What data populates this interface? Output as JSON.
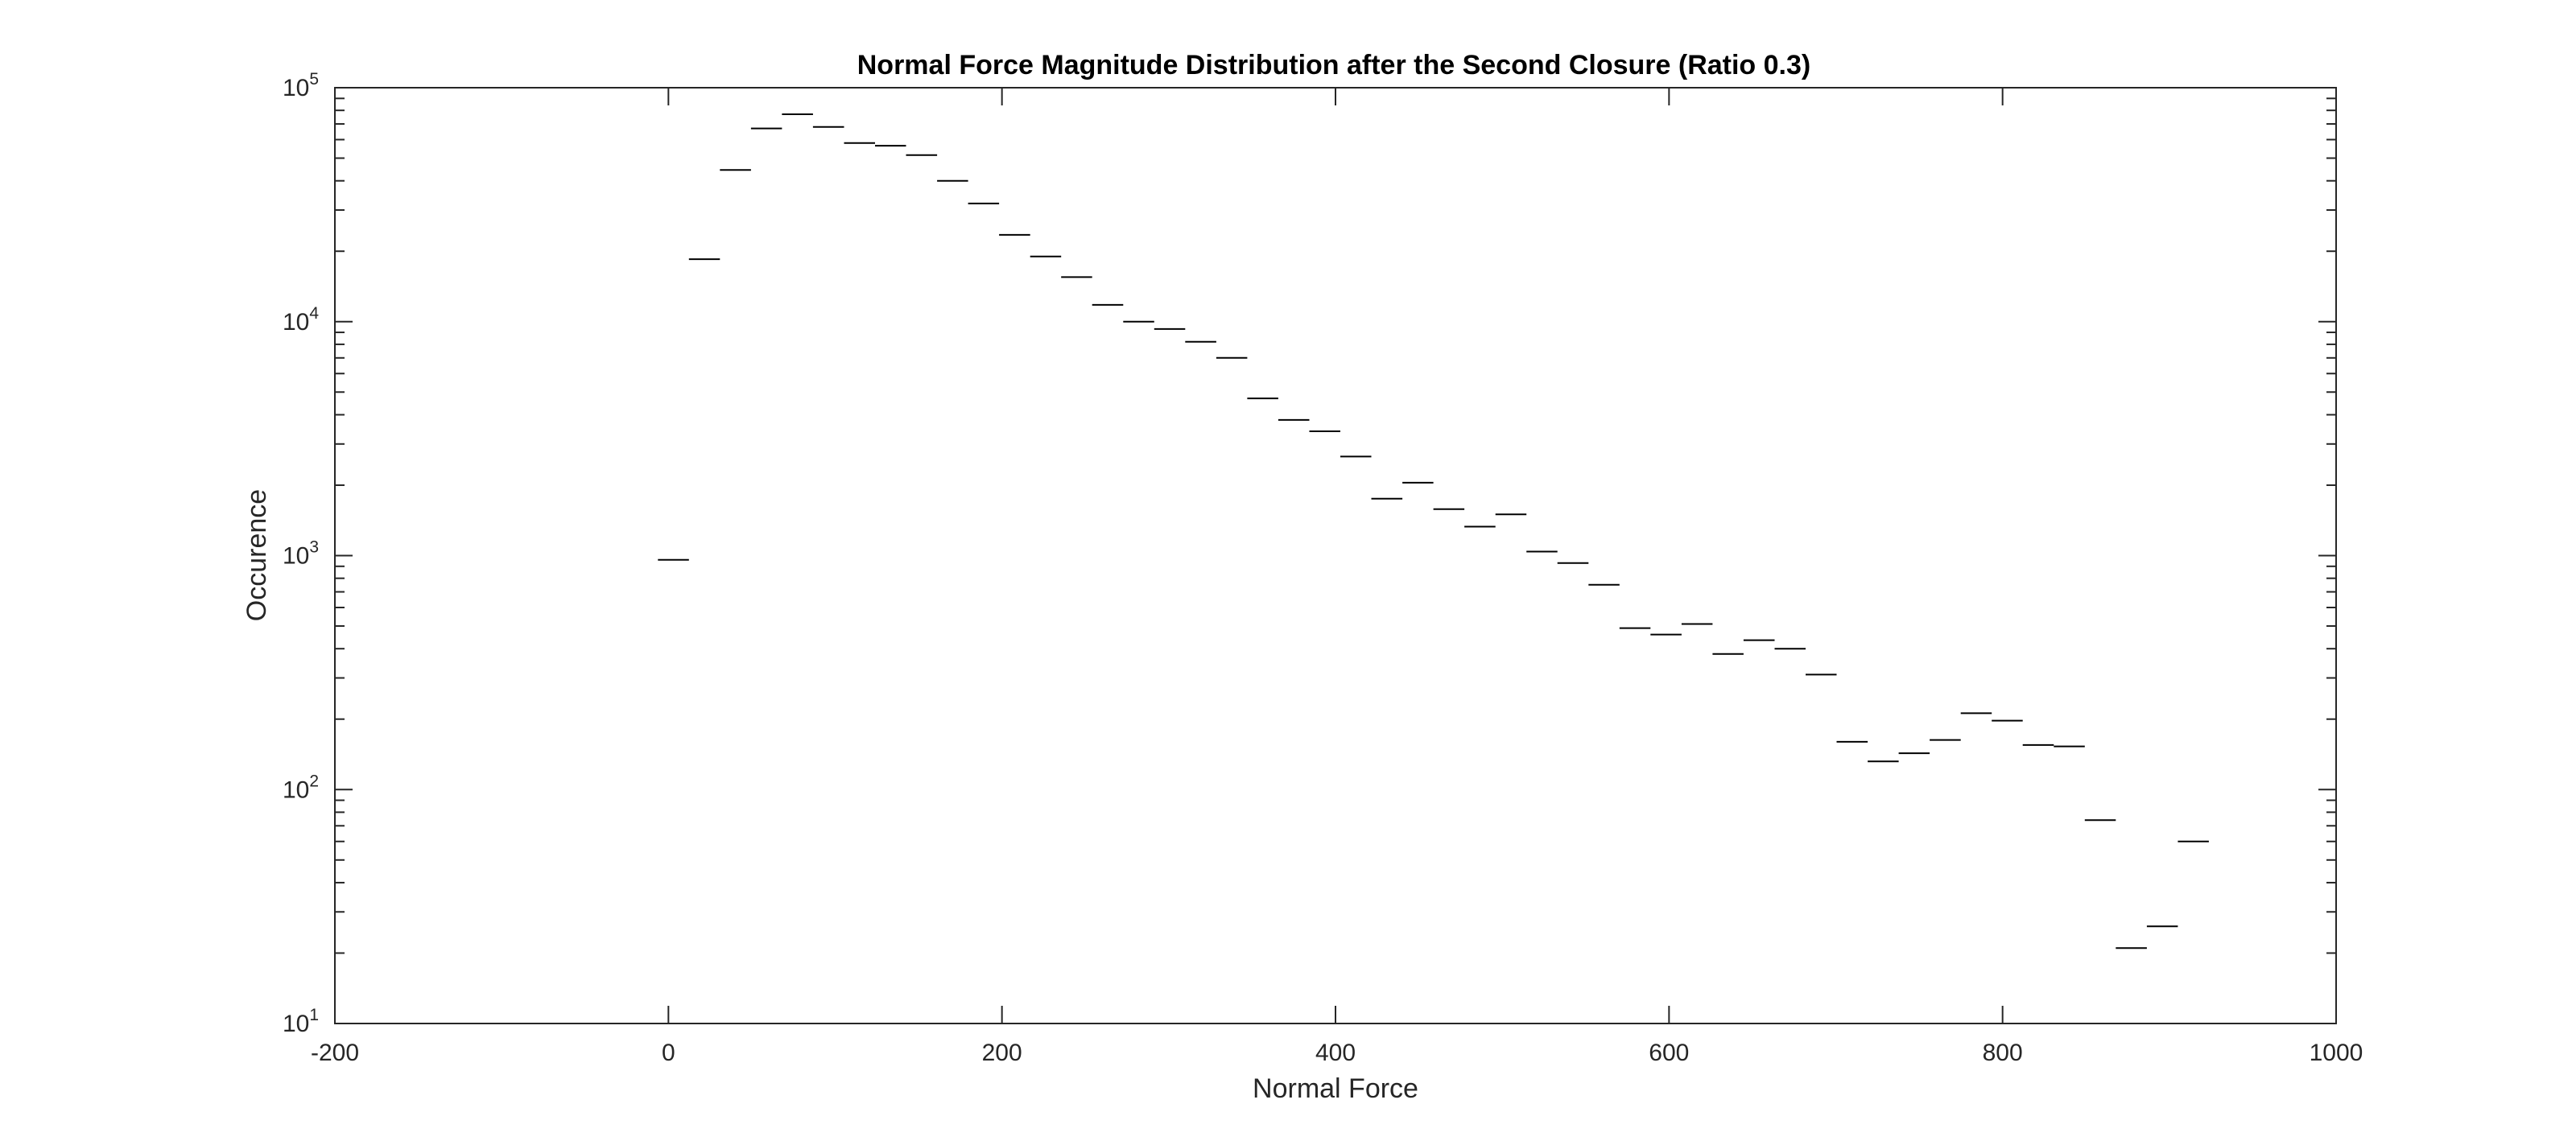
{
  "chart_data": {
    "type": "histogram-stairs",
    "title": "Normal Force Magnitude Distribution after the Second Closure (Ratio 0.3)",
    "xlabel": "Normal Force",
    "ylabel": "Occurence",
    "xlim": [
      -200,
      1000
    ],
    "ylim": [
      10,
      100000
    ],
    "yscale": "log",
    "grid": false,
    "x_ticks": [
      "-200",
      "0",
      "200",
      "400",
      "600",
      "800",
      "1000"
    ],
    "y_ticks": [
      {
        "base": "10",
        "exp": "1"
      },
      {
        "base": "10",
        "exp": "2"
      },
      {
        "base": "10",
        "exp": "3"
      },
      {
        "base": "10",
        "exp": "4"
      },
      {
        "base": "10",
        "exp": "5"
      }
    ],
    "bin_width": 18.6,
    "bin_centers": [
      3,
      21.6,
      40.2,
      58.8,
      77.4,
      96,
      114.6,
      133.2,
      151.8,
      170.4,
      189,
      207.6,
      226.2,
      244.8,
      263.4,
      282,
      300.6,
      319.2,
      337.8,
      356.4,
      375,
      393.6,
      412.2,
      430.8,
      449.4,
      468,
      486.6,
      505.2,
      523.8,
      542.4,
      561,
      579.6,
      598.2,
      616.8,
      635.4,
      654,
      672.6,
      691.2,
      709.8,
      728.4,
      747,
      765.6,
      784.2,
      802.8,
      821.4,
      840,
      858.6,
      877.2,
      895.8,
      914.4
    ],
    "values": [
      960,
      18500,
      44500,
      67000,
      77000,
      68000,
      58000,
      56500,
      51500,
      40000,
      32000,
      23500,
      19000,
      15500,
      11800,
      10000,
      9300,
      8200,
      7000,
      4700,
      3800,
      3400,
      2650,
      1750,
      2050,
      1580,
      1330,
      1500,
      1040,
      930,
      750,
      490,
      460,
      510,
      380,
      435,
      400,
      310,
      160,
      132,
      143,
      163,
      212,
      197,
      155,
      153,
      74,
      21,
      26,
      60
    ]
  }
}
